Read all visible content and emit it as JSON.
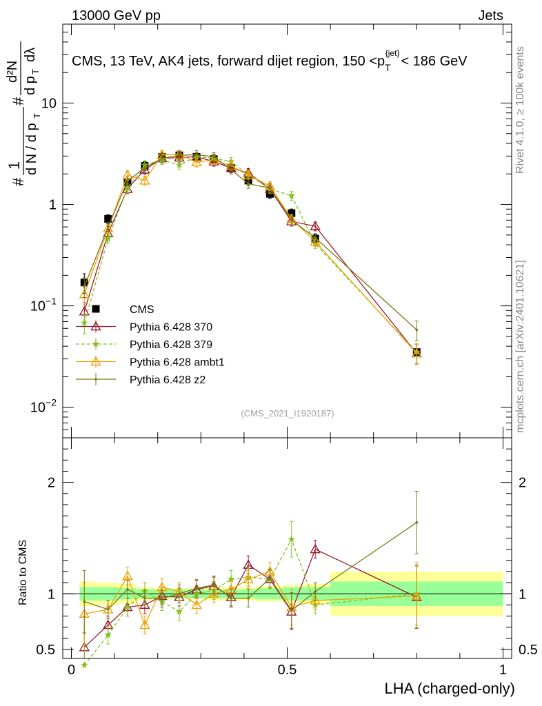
{
  "header": {
    "left_label": "13000 GeV pp",
    "right_label": "Jets",
    "title_main": "CMS, 13 TeV, AK4 jets, forward dijet region, 150 <p",
    "title_sub": "T",
    "title_sup": "{jet}",
    "title_tail": "< 186 GeV"
  },
  "side_text": {
    "rivet": "Rivet 4.1.0, ≥ 100k events",
    "mcplots": "mcplots.cern.ch [arXiv:2401.10621]"
  },
  "watermark": "(CMS_2021_I1920187)",
  "colors": {
    "cms": "#000000",
    "p370": "#9b1b30",
    "p379": "#7fc31c",
    "ambt1": "#f0a000",
    "z2": "#7a7a14",
    "band_inner": "#99ff99",
    "band_outer": "#ffff99"
  },
  "chart_data": [
    {
      "type": "line",
      "yscale": "log",
      "title": "CMS, 13 TeV, AK4 jets, forward dijet region, 150 < pT{jet} < 186 GeV",
      "ylabel": "1/dN/dpT · d²N/(dpT dλ)",
      "ylim": [
        0.005,
        60
      ],
      "yticks": [
        {
          "value": 0.01,
          "base": "10",
          "exp": "−2"
        },
        {
          "value": 0.1,
          "base": "10",
          "exp": "−1"
        },
        {
          "value": 1,
          "base": "1",
          "exp": ""
        },
        {
          "value": 10,
          "base": "10",
          "exp": ""
        }
      ],
      "x": [
        0.03,
        0.085,
        0.13,
        0.17,
        0.21,
        0.25,
        0.29,
        0.33,
        0.37,
        0.41,
        0.46,
        0.51,
        0.565,
        0.8
      ],
      "series": [
        {
          "name": "CMS",
          "key": "cms",
          "marker": "square",
          "values": [
            0.17,
            0.72,
            1.65,
            2.4,
            2.95,
            3.05,
            2.95,
            2.8,
            2.3,
            1.72,
            1.27,
            0.82,
            0.46,
            0.035
          ]
        },
        {
          "name": "Pythia 6.428 370",
          "key": "p370",
          "marker": "triangle",
          "values": [
            0.088,
            0.52,
            1.42,
            2.2,
            2.85,
            2.9,
            2.95,
            2.65,
            2.28,
            2.05,
            1.42,
            0.68,
            0.61,
            0.034
          ]
        },
        {
          "name": "Pythia 6.428 379",
          "key": "p379",
          "marker": "star",
          "dashed": true,
          "values": [
            0.068,
            0.46,
            1.45,
            2.45,
            2.75,
            2.45,
            2.95,
            2.85,
            2.65,
            1.95,
            1.42,
            1.22,
            0.41,
            0.035
          ]
        },
        {
          "name": "Pythia 6.428 ambt1",
          "key": "ambt1",
          "marker": "triangle",
          "values": [
            0.13,
            0.58,
            1.95,
            1.72,
            3.1,
            3.1,
            2.6,
            2.75,
            2.4,
            1.95,
            1.52,
            0.72,
            0.43,
            0.034
          ]
        },
        {
          "name": "Pythia 6.428 z2",
          "key": "z2",
          "marker": "dot",
          "values": [
            0.155,
            0.6,
            1.7,
            2.3,
            2.85,
            3.05,
            3.1,
            2.95,
            2.2,
            1.6,
            1.45,
            0.7,
            0.47,
            0.058
          ]
        }
      ],
      "legend": [
        "CMS",
        "Pythia 6.428 370",
        "Pythia 6.428 379",
        "Pythia 6.428 ambt1",
        "Pythia 6.428 z2"
      ]
    },
    {
      "type": "line",
      "ylabel": "Ratio to CMS",
      "xlabel": "LHA (charged-only)",
      "xlim": [
        -0.02,
        1.02
      ],
      "ylim": [
        0.42,
        2.4
      ],
      "xticks": [
        {
          "value": 0,
          "label": "0"
        },
        {
          "value": 0.5,
          "label": "0.5"
        },
        {
          "value": 1,
          "label": "1"
        }
      ],
      "yticks": [
        {
          "value": 0.5,
          "label": "0.5"
        },
        {
          "value": 1,
          "label": "1"
        },
        {
          "value": 2,
          "label": "2"
        }
      ],
      "x": [
        0.03,
        0.085,
        0.13,
        0.17,
        0.21,
        0.25,
        0.29,
        0.33,
        0.37,
        0.41,
        0.46,
        0.51,
        0.565,
        0.8
      ],
      "bands": {
        "edges": [
          0.0,
          0.06,
          0.11,
          0.15,
          0.19,
          0.23,
          0.27,
          0.31,
          0.35,
          0.39,
          0.43,
          0.49,
          0.54,
          0.6,
          1.0
        ],
        "inner": [
          0.06,
          0.06,
          0.05,
          0.04,
          0.04,
          0.04,
          0.04,
          0.04,
          0.04,
          0.04,
          0.05,
          0.06,
          0.06,
          0.11
        ],
        "outer": [
          0.11,
          0.1,
          0.09,
          0.06,
          0.05,
          0.05,
          0.05,
          0.06,
          0.06,
          0.06,
          0.07,
          0.08,
          0.09,
          0.2
        ]
      },
      "series": [
        {
          "name": "Pythia 6.428 370",
          "key": "p370",
          "marker": "triangle",
          "values": [
            0.52,
            0.72,
            0.88,
            0.9,
            0.98,
            0.97,
            1.04,
            1.07,
            0.97,
            1.26,
            1.13,
            0.84,
            1.4,
            0.97
          ]
        },
        {
          "name": "Pythia 6.428 379",
          "key": "p379",
          "marker": "star",
          "dashed": true,
          "values": [
            0.36,
            0.63,
            0.88,
            1.02,
            0.93,
            0.84,
            1.0,
            1.03,
            1.13,
            1.15,
            1.13,
            1.49,
            0.9,
            1.0
          ]
        },
        {
          "name": "Pythia 6.428 ambt1",
          "key": "ambt1",
          "marker": "triangle",
          "values": [
            0.82,
            0.86,
            1.16,
            0.72,
            1.06,
            1.02,
            0.9,
            1.0,
            1.04,
            1.13,
            1.2,
            0.88,
            0.94,
            0.98
          ]
        },
        {
          "name": "Pythia 6.428 z2",
          "key": "z2",
          "marker": "dot",
          "values": [
            0.93,
            0.86,
            1.04,
            0.96,
            0.96,
            1.0,
            1.05,
            1.08,
            0.96,
            0.96,
            1.14,
            0.85,
            1.02,
            1.64
          ]
        }
      ]
    }
  ]
}
